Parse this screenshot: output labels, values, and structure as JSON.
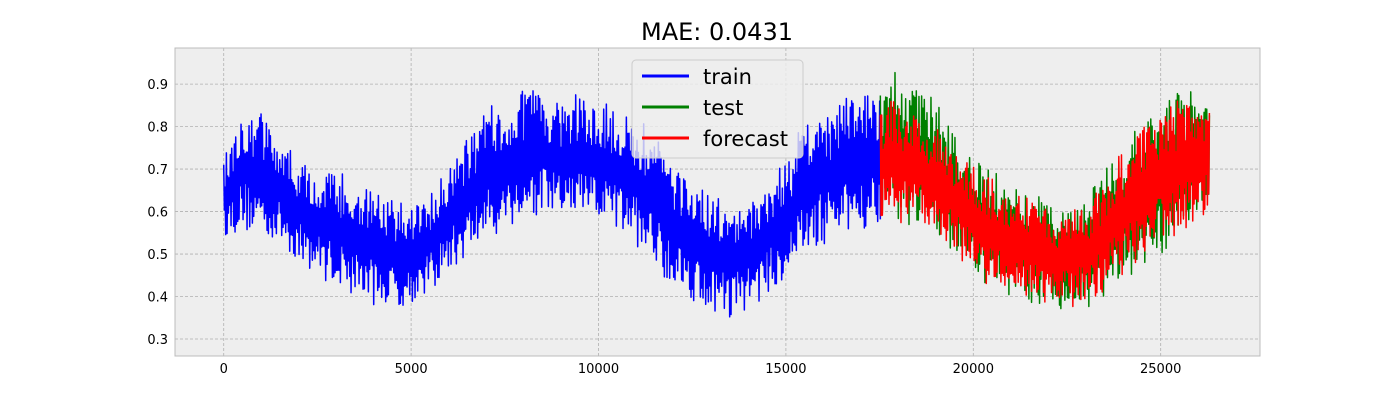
{
  "chart_data": {
    "type": "line",
    "title": "MAE: 0.0431",
    "xlabel": "",
    "ylabel": "",
    "xlim": [
      -1300,
      27650
    ],
    "ylim": [
      0.26,
      0.985
    ],
    "xticks": [
      0,
      5000,
      10000,
      15000,
      20000,
      25000
    ],
    "yticks": [
      0.3,
      0.4,
      0.5,
      0.6,
      0.7,
      0.8,
      0.9
    ],
    "grid": true,
    "legend_position": "top-center",
    "series": [
      {
        "name": "train",
        "color": "#0000ff",
        "x_range": [
          0,
          17520
        ],
        "envelope_x": [
          0,
          500,
          1000,
          1500,
          2000,
          2500,
          3000,
          3500,
          4000,
          4500,
          5000,
          5500,
          6000,
          6500,
          7000,
          7500,
          8000,
          8500,
          9000,
          9500,
          10000,
          10500,
          11000,
          11500,
          12000,
          12500,
          13000,
          13500,
          14000,
          14500,
          15000,
          15500,
          16000,
          16500,
          17000,
          17520
        ],
        "upper": [
          0.72,
          0.86,
          0.84,
          0.78,
          0.72,
          0.7,
          0.7,
          0.68,
          0.65,
          0.63,
          0.61,
          0.64,
          0.72,
          0.78,
          0.84,
          0.88,
          0.89,
          0.88,
          0.86,
          0.88,
          0.86,
          0.85,
          0.82,
          0.79,
          0.72,
          0.68,
          0.64,
          0.62,
          0.63,
          0.67,
          0.72,
          0.82,
          0.84,
          0.86,
          0.92,
          0.88
        ],
        "lower": [
          0.54,
          0.55,
          0.54,
          0.52,
          0.48,
          0.45,
          0.42,
          0.4,
          0.38,
          0.37,
          0.38,
          0.41,
          0.45,
          0.49,
          0.53,
          0.55,
          0.57,
          0.59,
          0.58,
          0.58,
          0.57,
          0.55,
          0.52,
          0.47,
          0.42,
          0.39,
          0.36,
          0.35,
          0.37,
          0.4,
          0.44,
          0.49,
          0.52,
          0.53,
          0.55,
          0.57
        ]
      },
      {
        "name": "test",
        "color": "#008000",
        "x_range": [
          17520,
          26300
        ],
        "envelope_x": [
          17520,
          18000,
          18500,
          19000,
          19500,
          20000,
          20500,
          21000,
          21500,
          22000,
          22500,
          23000,
          23500,
          24000,
          24500,
          25000,
          25500,
          26000,
          26300
        ],
        "upper": [
          0.9,
          0.94,
          0.91,
          0.86,
          0.79,
          0.74,
          0.7,
          0.68,
          0.65,
          0.62,
          0.61,
          0.63,
          0.7,
          0.77,
          0.81,
          0.85,
          0.9,
          0.87,
          0.85
        ],
        "lower": [
          0.58,
          0.58,
          0.56,
          0.55,
          0.5,
          0.45,
          0.42,
          0.39,
          0.38,
          0.37,
          0.36,
          0.37,
          0.4,
          0.43,
          0.46,
          0.49,
          0.53,
          0.58,
          0.61
        ]
      },
      {
        "name": "forecast",
        "color": "#ff0000",
        "x_range": [
          17520,
          26300
        ],
        "envelope_x": [
          17520,
          18000,
          18500,
          19000,
          19500,
          20000,
          20500,
          21000,
          21500,
          22000,
          22500,
          23000,
          23500,
          24000,
          24500,
          25000,
          25500,
          26000,
          26300
        ],
        "upper": [
          0.86,
          0.86,
          0.84,
          0.8,
          0.75,
          0.71,
          0.68,
          0.66,
          0.63,
          0.61,
          0.6,
          0.62,
          0.68,
          0.75,
          0.8,
          0.84,
          0.88,
          0.86,
          0.84
        ],
        "lower": [
          0.57,
          0.57,
          0.56,
          0.55,
          0.5,
          0.45,
          0.42,
          0.4,
          0.39,
          0.38,
          0.37,
          0.38,
          0.41,
          0.44,
          0.47,
          0.5,
          0.54,
          0.57,
          0.6
        ]
      }
    ]
  },
  "colors": {
    "background": "#ffffff",
    "plot_background": "#eeeeee",
    "grid": "#b0b0b0",
    "axes_edge": "#bcbcbc"
  }
}
